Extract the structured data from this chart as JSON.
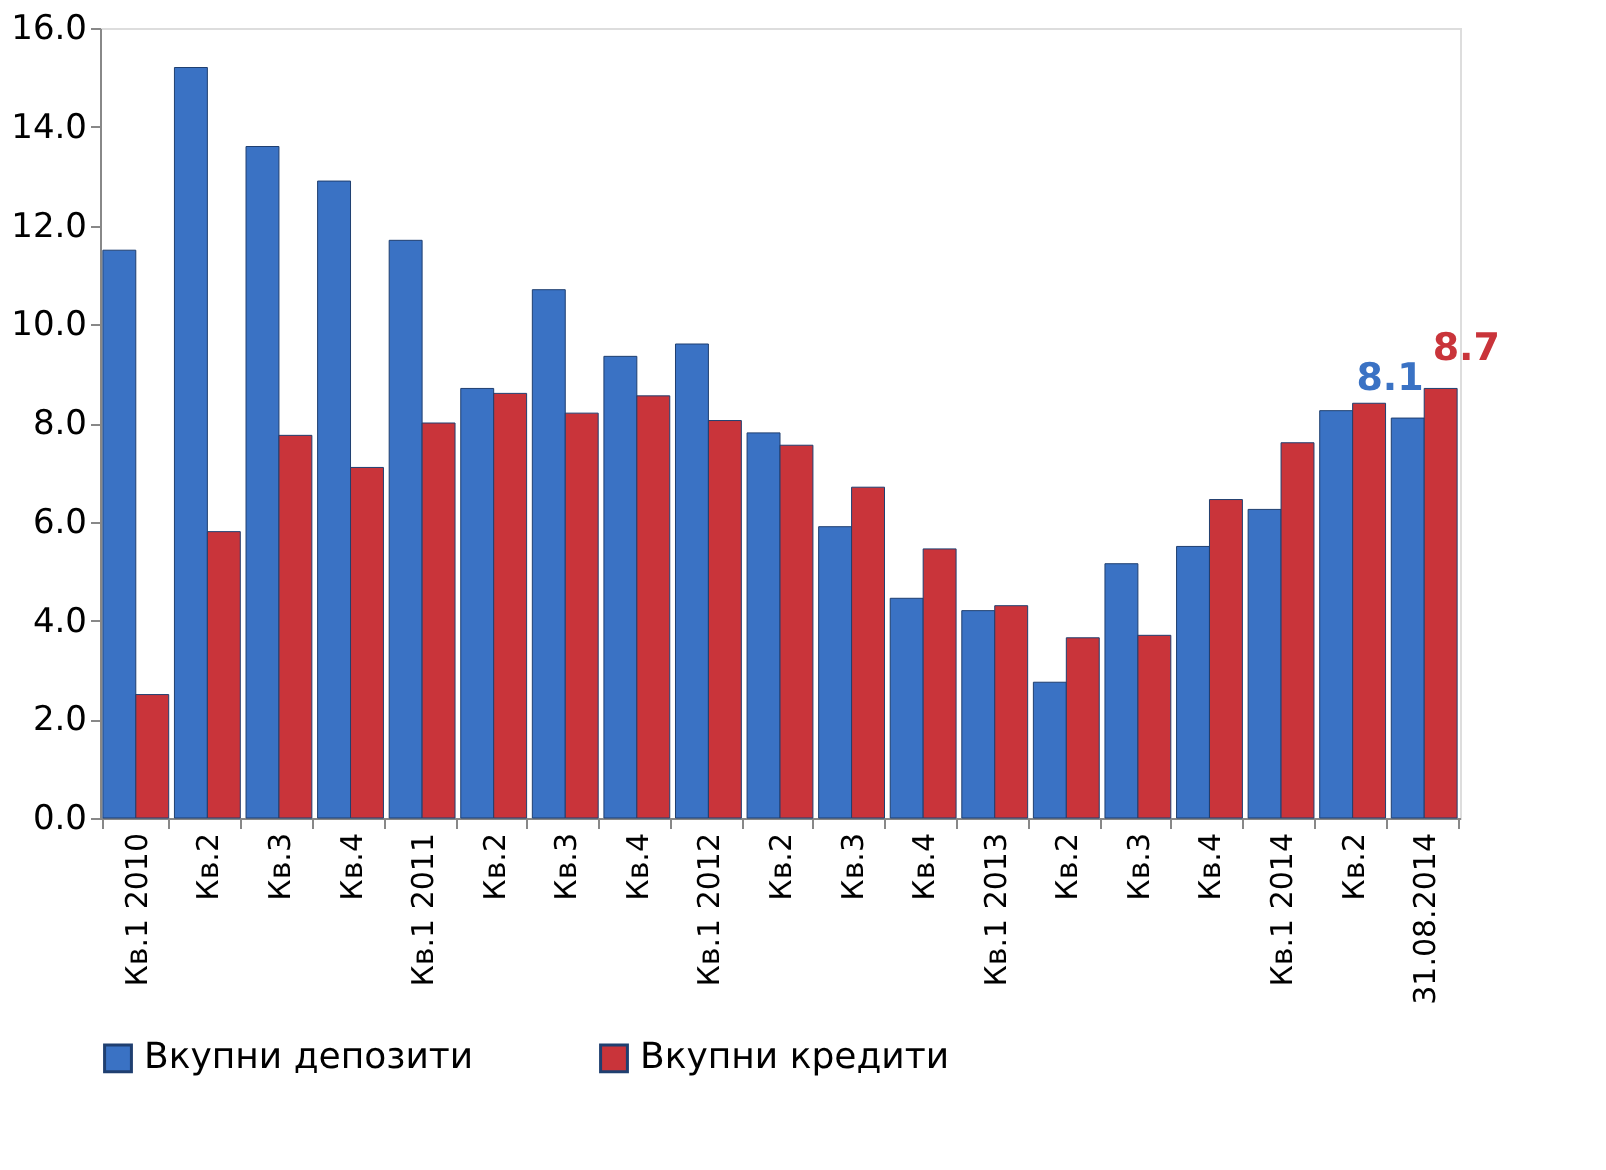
{
  "chart_data": {
    "type": "bar",
    "categories": [
      "Кв.1 2010",
      "Кв.2",
      "Кв.3",
      "Кв.4",
      "Кв.1 2011",
      "Кв.2",
      "Кв.3",
      "Кв.4",
      "Кв.1 2012",
      "Кв.2",
      "Кв.3",
      "Кв.4",
      "Кв.1 2013",
      "Кв.2",
      "Кв.3",
      "Кв.4",
      "Кв.1 2014",
      "Кв.2",
      "31.08.2014"
    ],
    "series": [
      {
        "name": "Вкупни депозити",
        "color": "#3a72c4",
        "values": [
          11.5,
          15.2,
          13.6,
          12.9,
          11.7,
          8.7,
          10.7,
          9.35,
          9.6,
          7.8,
          5.9,
          4.45,
          4.2,
          2.75,
          5.15,
          5.5,
          6.25,
          8.25,
          8.1
        ],
        "value_labels": [
          null,
          null,
          null,
          null,
          null,
          null,
          null,
          null,
          null,
          null,
          null,
          null,
          null,
          null,
          null,
          null,
          null,
          null,
          "8.1"
        ]
      },
      {
        "name": "Вкупни кредити",
        "color": "#c9343a",
        "values": [
          2.5,
          5.8,
          7.75,
          7.1,
          8.0,
          8.6,
          8.2,
          8.55,
          8.05,
          7.55,
          6.7,
          5.45,
          4.3,
          3.65,
          3.7,
          6.45,
          7.6,
          8.4,
          8.7
        ],
        "value_labels": [
          null,
          null,
          null,
          null,
          null,
          null,
          null,
          null,
          null,
          null,
          null,
          null,
          null,
          null,
          null,
          null,
          null,
          null,
          "8.7"
        ]
      }
    ],
    "ylim": [
      0,
      16
    ],
    "yticks": [
      {
        "value": 0,
        "label": "0.0"
      },
      {
        "value": 2,
        "label": "2.0"
      },
      {
        "value": 4,
        "label": "4.0"
      },
      {
        "value": 6,
        "label": "6.0"
      },
      {
        "value": 8,
        "label": "8.0"
      },
      {
        "value": 10,
        "label": "10.0"
      },
      {
        "value": 12,
        "label": "12.0"
      },
      {
        "value": 14,
        "label": "14.0"
      },
      {
        "value": 16,
        "label": "16.0"
      }
    ],
    "grid": false,
    "legend": "bottom"
  }
}
